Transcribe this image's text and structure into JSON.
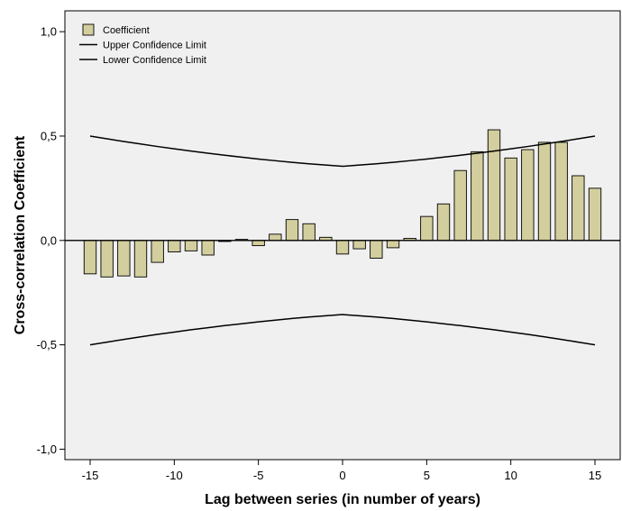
{
  "chart_data": {
    "type": "bar",
    "title": "",
    "xlabel": "Lag between series (in number of years)",
    "ylabel": "Cross-correlation Coefficient",
    "xlim": [
      -16.5,
      16.5
    ],
    "ylim": [
      -1.05,
      1.1
    ],
    "x_ticks": [
      -15,
      -10,
      -5,
      0,
      5,
      10,
      15
    ],
    "x_tick_labels": [
      "-15",
      "-10",
      "-5",
      "0",
      "5",
      "10",
      "15"
    ],
    "y_ticks": [
      -1.0,
      -0.5,
      0.0,
      0.5,
      1.0
    ],
    "y_tick_labels": [
      "-1,0",
      "-0,5",
      "0,0",
      "0,5",
      "1,0"
    ],
    "grid": false,
    "legend_position": "top-left",
    "plot_background": "#f0f0f0",
    "bar_fill": "#d3ce9e",
    "bar_stroke": "#000000",
    "line_color": "#000000",
    "lags": [
      -15,
      -14,
      -13,
      -12,
      -11,
      -10,
      -9,
      -8,
      -7,
      -6,
      -5,
      -4,
      -3,
      -2,
      -1,
      0,
      1,
      2,
      3,
      4,
      5,
      6,
      7,
      8,
      9,
      10,
      11,
      12,
      13,
      14,
      15
    ],
    "series": [
      {
        "name": "Coefficient",
        "kind": "bar",
        "values": [
          -0.16,
          -0.175,
          -0.17,
          -0.175,
          -0.105,
          -0.055,
          -0.05,
          -0.07,
          -0.005,
          0.005,
          -0.025,
          0.03,
          0.1,
          0.08,
          0.015,
          -0.065,
          -0.04,
          -0.085,
          -0.035,
          0.01,
          0.115,
          0.175,
          0.335,
          0.425,
          0.53,
          0.395,
          0.435,
          0.47,
          0.47,
          0.31,
          0.25
        ]
      },
      {
        "name": "Upper Confidence Limit",
        "kind": "line",
        "values": [
          0.5,
          0.487,
          0.474,
          0.462,
          0.45,
          0.439,
          0.428,
          0.418,
          0.408,
          0.399,
          0.39,
          0.382,
          0.374,
          0.367,
          0.361,
          0.355,
          0.361,
          0.367,
          0.374,
          0.382,
          0.39,
          0.399,
          0.408,
          0.418,
          0.428,
          0.439,
          0.45,
          0.462,
          0.474,
          0.487,
          0.5
        ]
      },
      {
        "name": "Lower Confidence Limit",
        "kind": "line",
        "values": [
          -0.5,
          -0.487,
          -0.474,
          -0.462,
          -0.45,
          -0.439,
          -0.428,
          -0.418,
          -0.408,
          -0.399,
          -0.39,
          -0.382,
          -0.374,
          -0.367,
          -0.361,
          -0.355,
          -0.361,
          -0.367,
          -0.374,
          -0.382,
          -0.39,
          -0.399,
          -0.408,
          -0.418,
          -0.428,
          -0.439,
          -0.45,
          -0.462,
          -0.474,
          -0.487,
          -0.5
        ]
      }
    ]
  }
}
